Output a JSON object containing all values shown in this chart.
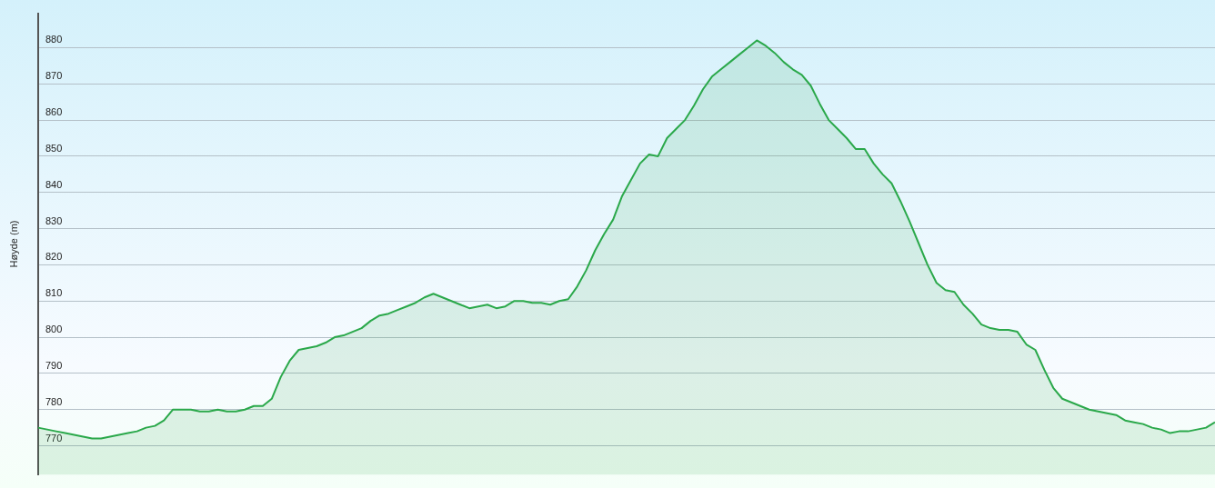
{
  "chart_data": {
    "type": "area",
    "ylabel": "Høyde (m)",
    "categories": [
      null,
      null,
      null,
      null,
      null,
      null,
      null,
      null,
      null,
      null,
      null,
      null,
      null,
      null,
      null,
      null,
      null,
      null,
      null,
      null,
      null,
      null,
      null,
      null,
      null,
      null,
      null,
      null,
      null,
      null,
      null,
      null,
      null,
      null,
      null,
      null,
      null,
      null,
      null,
      null,
      null,
      null,
      null,
      null,
      null,
      null,
      null,
      null,
      null,
      null,
      null,
      null,
      null,
      null,
      null,
      null,
      null,
      null,
      null,
      null,
      null,
      null,
      null,
      null,
      null,
      null,
      null,
      null,
      null,
      null,
      null,
      null,
      null,
      null,
      null,
      null,
      null,
      null,
      null,
      null,
      null,
      null,
      null,
      null,
      null,
      null,
      null,
      null,
      null,
      null,
      null,
      null,
      null,
      null,
      null,
      null,
      null,
      null,
      null,
      null,
      null,
      null,
      null,
      null,
      null,
      null,
      null,
      null,
      null,
      null,
      null,
      null,
      null,
      null,
      null,
      null,
      null,
      null,
      null,
      null,
      null,
      null,
      null,
      null,
      null,
      null,
      null,
      null,
      null,
      null,
      null,
      null
    ],
    "series": [
      {
        "color": "#2aa84a",
        "values": [
          775,
          774.5,
          774,
          773.5,
          773,
          772.5,
          772,
          772,
          772.5,
          773,
          773.5,
          774,
          775,
          775.5,
          777,
          780,
          780,
          780,
          779.5,
          779.5,
          780,
          779.5,
          779.5,
          780,
          781,
          781,
          783,
          789,
          793.5,
          796.5,
          797,
          797.5,
          798.5,
          800,
          800.5,
          801.5,
          802.5,
          804.5,
          806,
          806.5,
          807.5,
          808.5,
          809.5,
          811,
          812,
          811,
          810,
          809,
          808,
          808.5,
          809,
          808,
          808.5,
          810,
          810,
          809.5,
          809.5,
          809,
          810,
          810.5,
          814,
          818.5,
          824,
          828.5,
          832.5,
          839,
          843.5,
          848,
          850.5,
          850,
          855,
          857.5,
          860,
          864,
          868.5,
          872,
          874,
          876,
          878,
          880,
          882,
          880.5,
          878.5,
          876,
          874,
          872.5,
          869.5,
          864.5,
          860,
          857.5,
          855,
          852,
          852,
          848,
          845,
          842.5,
          837.5,
          832,
          826,
          820,
          815,
          813,
          812.5,
          809,
          806.5,
          803.5,
          802.5,
          802,
          802,
          801.5,
          798,
          796.5,
          791,
          786,
          783,
          782,
          781,
          780,
          779.5,
          779,
          778.5,
          777,
          776.5,
          776,
          775,
          774.5,
          773.5,
          774,
          774,
          774.5,
          775,
          776.5
        ]
      }
    ],
    "ylim": [
      762,
      889.5
    ],
    "yticks": [
      770,
      780,
      790,
      800,
      810,
      820,
      830,
      840,
      850,
      860,
      870,
      880
    ],
    "grid": "y",
    "marker": "none",
    "line_style": "solid",
    "legend": false
  }
}
